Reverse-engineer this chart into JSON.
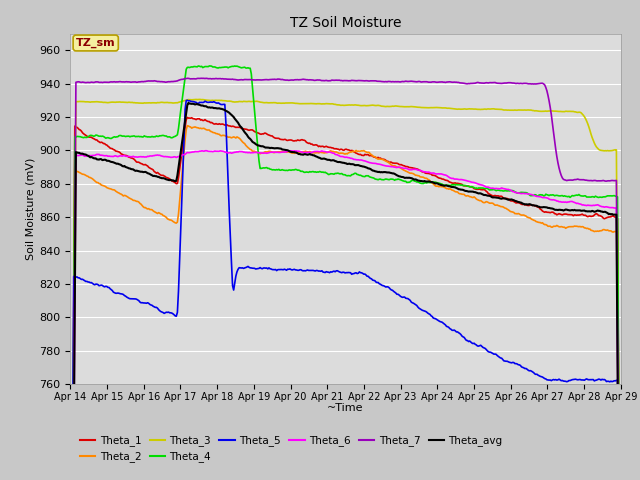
{
  "title": "TZ Soil Moisture",
  "xlabel": "~Time",
  "ylabel": "Soil Moisture (mV)",
  "ylim": [
    760,
    970
  ],
  "yticks": [
    760,
    780,
    800,
    820,
    840,
    860,
    880,
    900,
    920,
    940,
    960
  ],
  "legend_label": "TZ_sm",
  "legend_label_color": "#8B0000",
  "legend_box_facecolor": "#f5f0a0",
  "legend_box_edgecolor": "#b8a000",
  "fig_facecolor": "#c8c8c8",
  "plot_bg_color": "#dcdcdc",
  "grid_color": "#ffffff",
  "series_colors": {
    "Theta_1": "#dd0000",
    "Theta_2": "#ff8800",
    "Theta_3": "#cccc00",
    "Theta_4": "#00dd00",
    "Theta_5": "#0000ee",
    "Theta_6": "#ff00ff",
    "Theta_7": "#9900bb",
    "Theta_avg": "#000000"
  },
  "xtick_labels": [
    "Apr 14",
    "Apr 15",
    "Apr 16",
    "Apr 17",
    "Apr 18",
    "Apr 19",
    "Apr 20",
    "Apr 21",
    "Apr 22",
    "Apr 23",
    "Apr 24",
    "Apr 25",
    "Apr 26",
    "Apr 27",
    "Apr 28",
    "Apr 29"
  ],
  "n_points": 500
}
